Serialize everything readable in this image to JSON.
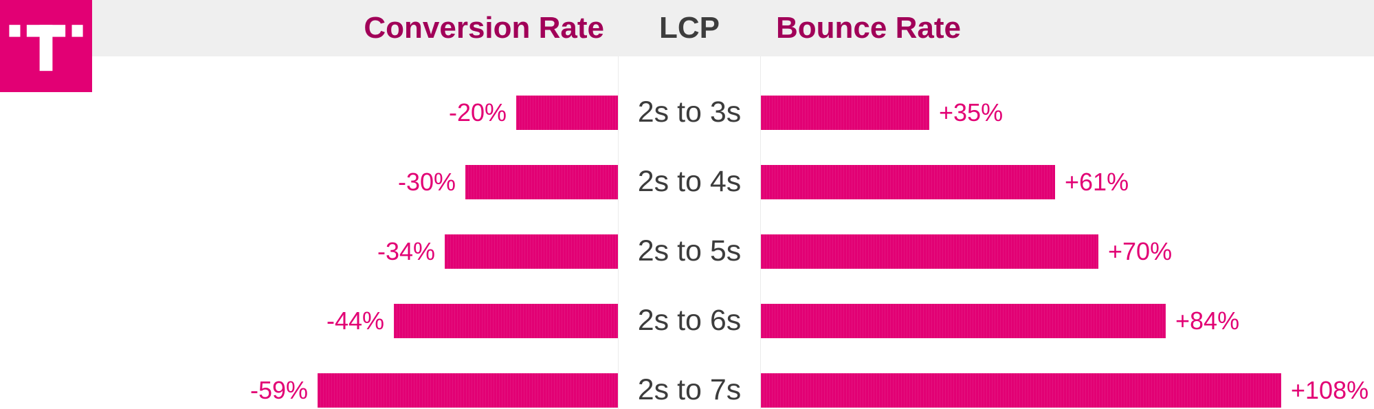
{
  "brand": {
    "logo_icon": "telekom-t-icon",
    "logo_letter": "T",
    "magenta": "#e20074"
  },
  "header": {
    "background": "#efefef"
  },
  "chart_data": {
    "type": "bar",
    "subtype": "diverging horizontal tornado chart",
    "category_axis_label": "LCP",
    "categories": [
      "2s to 3s",
      "2s to 4s",
      "2s to 5s",
      "2s to 6s",
      "2s to 7s"
    ],
    "series": [
      {
        "name": "Conversion Rate",
        "side": "left",
        "values": [
          -20,
          -30,
          -34,
          -44,
          -59
        ],
        "labels": [
          "-20%",
          "-30%",
          "-34%",
          "-44%",
          "-59%"
        ]
      },
      {
        "name": "Bounce Rate",
        "side": "right",
        "values": [
          35,
          61,
          70,
          84,
          108
        ],
        "labels": [
          "+35%",
          "+61%",
          "+70%",
          "+84%",
          "+108%"
        ]
      }
    ],
    "bar_color": "#e20074",
    "value_label_color": "#e20074",
    "header_label_color": "#a10058",
    "category_label_color": "#3c3c3c",
    "grid": false,
    "legend_position": "column headers at top"
  }
}
